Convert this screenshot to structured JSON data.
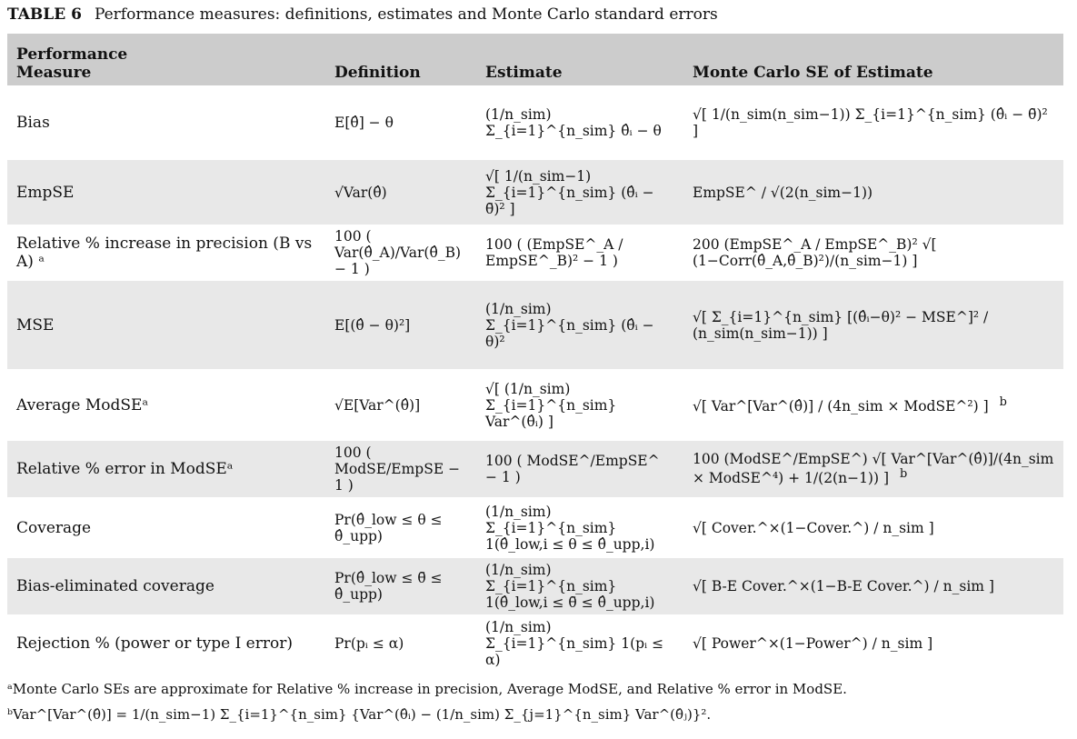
{
  "caption": {
    "label": "TABLE 6",
    "text": "Performance measures: definitions, estimates and Monte Carlo standard errors"
  },
  "headers": [
    "Performance\nMeasure",
    "Definition",
    "Estimate",
    "Monte Carlo SE of Estimate"
  ],
  "rows": [
    {
      "measure": "Bias",
      "definition": "E[θ̂] − θ",
      "estimate": "(1/n_sim) Σ_{i=1}^{n_sim} θ̂ᵢ − θ",
      "mcse": "√[ 1/(n_sim(n_sim−1)) Σ_{i=1}^{n_sim} (θ̂ᵢ − θ̄)² ]"
    },
    {
      "measure": "EmpSE",
      "definition": "√Var(θ̂)",
      "estimate": "√[ 1/(n_sim−1) Σ_{i=1}^{n_sim} (θ̂ᵢ − θ̄)² ]",
      "mcse": "EmpSE^ / √(2(n_sim−1))"
    },
    {
      "measure": "Relative % increase in precision (B vs A) ᵃ",
      "definition": "100 ( Var(θ̂_A)/Var(θ̂_B) − 1 )",
      "estimate": "100 ( (EmpSE^_A / EmpSE^_B)² − 1 )",
      "mcse": "200 (EmpSE^_A / EmpSE^_B)² √[ (1−Corr(θ̂_A,θ̂_B)²)/(n_sim−1) ]"
    },
    {
      "measure": "MSE",
      "definition": "E[(θ̂ − θ)²]",
      "estimate": "(1/n_sim) Σ_{i=1}^{n_sim} (θ̂ᵢ − θ)²",
      "mcse": "√[ Σ_{i=1}^{n_sim} [(θ̂ᵢ−θ)² − MSE^]² / (n_sim(n_sim−1)) ]"
    },
    {
      "measure": "Average ModSEᵃ",
      "definition": "√E[Var^(θ̂)]",
      "estimate": "√[ (1/n_sim) Σ_{i=1}^{n_sim} Var^(θ̂ᵢ) ]",
      "mcse": "√[ Var^[Var^(θ̂)] / (4n_sim × ModSE^²) ]",
      "mcse_note": "b"
    },
    {
      "measure": "Relative % error in ModSEᵃ",
      "definition": "100 ( ModSE/EmpSE − 1 )",
      "estimate": "100 ( ModSE^/EmpSE^ − 1 )",
      "mcse": "100 (ModSE^/EmpSE^) √[ Var^[Var^(θ̂)]/(4n_sim × ModSE^⁴) + 1/(2(n−1)) ]",
      "mcse_note": "b"
    },
    {
      "measure": "Coverage",
      "definition": "Pr(θ̂_low ≤ θ ≤ θ̂_upp)",
      "estimate": "(1/n_sim) Σ_{i=1}^{n_sim} 1(θ̂_low,i ≤ θ ≤ θ̂_upp,i)",
      "mcse": "√[ Cover.^×(1−Cover.^) / n_sim ]"
    },
    {
      "measure": "Bias-eliminated coverage",
      "definition": "Pr(θ̂_low ≤ θ̄ ≤ θ̂_upp)",
      "estimate": "(1/n_sim) Σ_{i=1}^{n_sim} 1(θ̂_low,i ≤ θ̄ ≤ θ̂_upp,i)",
      "mcse": "√[ B-E Cover.^×(1−B-E Cover.^) / n_sim ]"
    },
    {
      "measure": "Rejection % (power or type I error)",
      "definition": "Pr(pᵢ ≤ α)",
      "estimate": "(1/n_sim) Σ_{i=1}^{n_sim} 1(pᵢ ≤ α)",
      "mcse": "√[ Power^×(1−Power^) / n_sim ]"
    }
  ],
  "footnotes": {
    "a": "ᵃMonte Carlo SEs are approximate for Relative % increase in precision, Average ModSE, and Relative % error in ModSE.",
    "b": "ᵇVar^[Var^(θ̂)] = 1/(n_sim−1) Σ_{i=1}^{n_sim} {Var^(θ̂ᵢ) − (1/n_sim) Σ_{j=1}^{n_sim} Var^(θ̂ⱼ)}²."
  },
  "colors": {
    "header_bg": "#cccccc",
    "stripe_bg": "#e8e8e8"
  }
}
